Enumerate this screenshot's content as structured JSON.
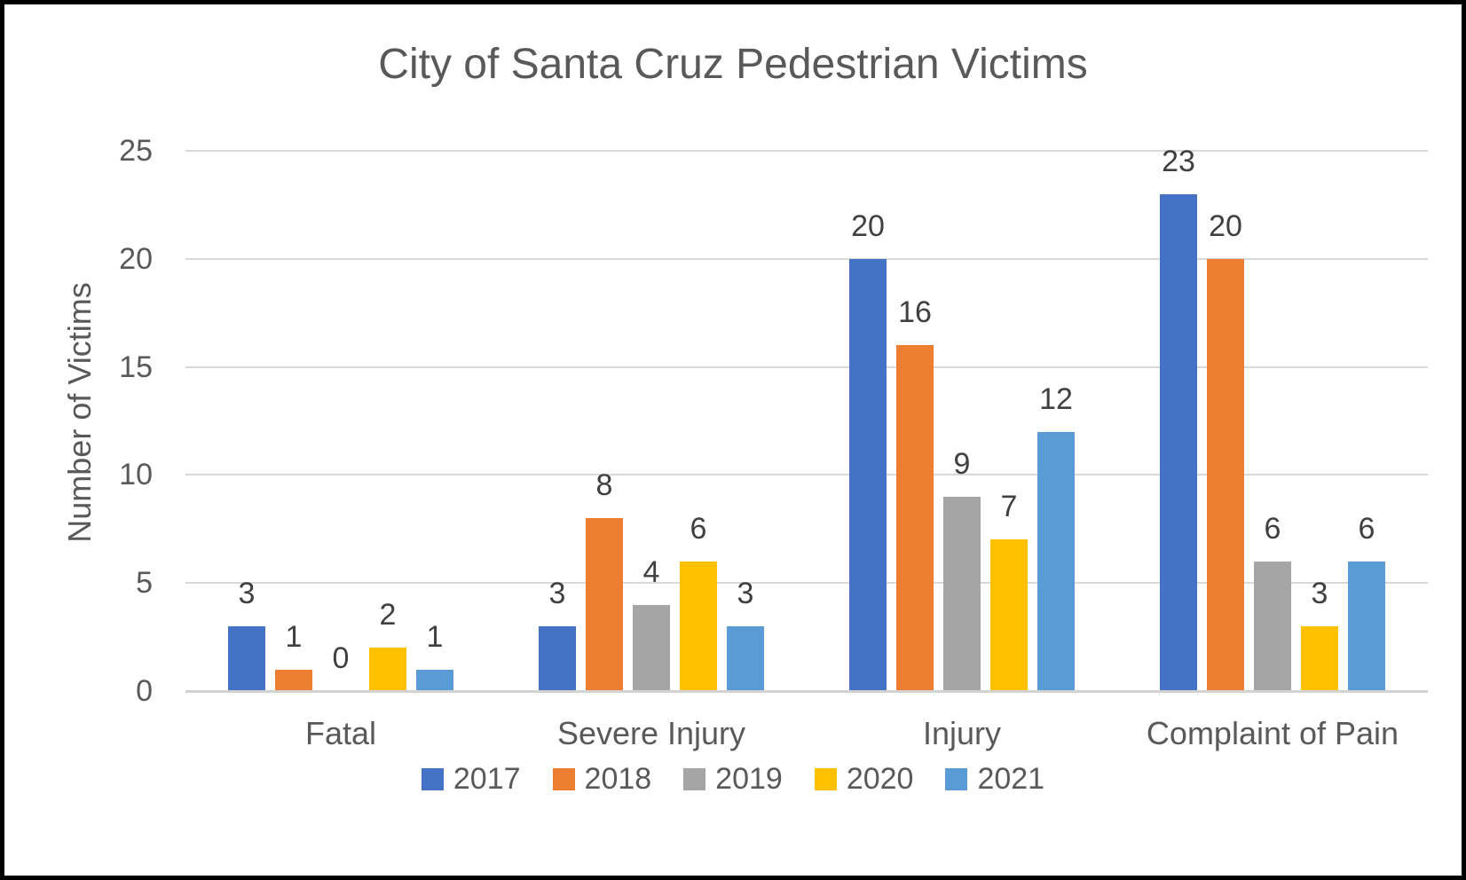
{
  "chart_data": {
    "type": "bar",
    "title": "City of Santa Cruz Pedestrian Victims",
    "categories": [
      "Fatal",
      "Severe Injury",
      "Injury",
      "Complaint of Pain"
    ],
    "series": [
      {
        "name": "2017",
        "color": "#4472C4",
        "values": [
          3,
          3,
          20,
          23
        ]
      },
      {
        "name": "2018",
        "color": "#ED7D31",
        "values": [
          1,
          8,
          16,
          20
        ]
      },
      {
        "name": "2019",
        "color": "#A5A5A5",
        "values": [
          0,
          4,
          9,
          6
        ]
      },
      {
        "name": "2020",
        "color": "#FFC000",
        "values": [
          2,
          6,
          7,
          3
        ]
      },
      {
        "name": "2021",
        "color": "#5B9BD5",
        "values": [
          1,
          3,
          12,
          6
        ]
      }
    ],
    "xlabel": "",
    "ylabel": "Number of Victims",
    "ylim": [
      0,
      25
    ],
    "yticks": [
      0,
      5,
      10,
      15,
      20,
      25
    ],
    "grid": true,
    "data_labels": true,
    "legend_position": "bottom",
    "colors": {
      "title_text": "#595959",
      "axis_text": "#595959",
      "data_label_text": "#404040",
      "gridline": "#D9D9D9",
      "axis_line": "#D2D2D2",
      "frame_border": "#000000",
      "background": "#FFFFFF"
    }
  }
}
